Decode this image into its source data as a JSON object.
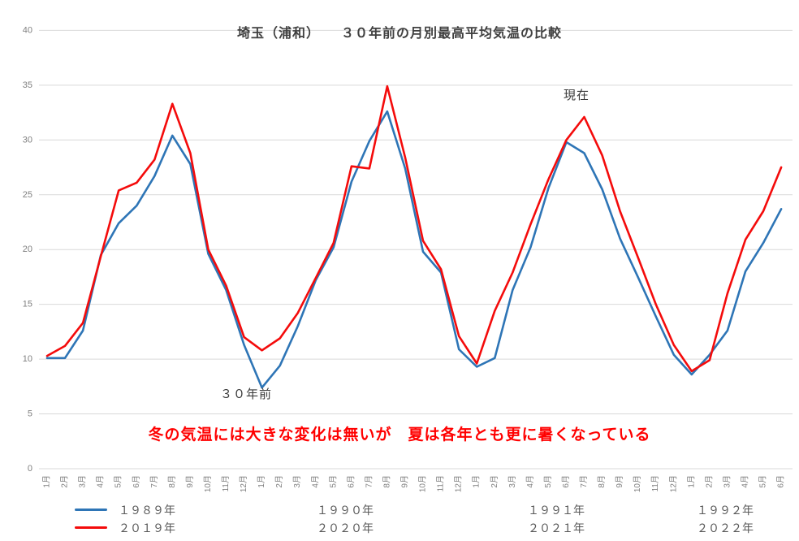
{
  "title": "埼玉（浦和）　　３０年前の月別最高平均気温の比較",
  "annotations": {
    "current": "現在",
    "thirty_years_ago": "３０年前"
  },
  "message": "冬の気温には大きな変化は無いが　夏は各年とも更に暑くなっている",
  "colors": {
    "past_line": "#2e75b6",
    "current_line": "#f40b0b",
    "grid": "#d9d9d9",
    "axis_text": "#7f7f7f",
    "title_text": "#404040",
    "annotation_text": "#3a3a3a",
    "message_text": "#ff0000"
  },
  "legend": {
    "rows": [
      {
        "color_key": "past_line",
        "items": [
          "１９８９年",
          "１９９０年",
          "１９９１年",
          "１９９２年"
        ]
      },
      {
        "color_key": "current_line",
        "items": [
          "２０１９年",
          "２０２０年",
          "２０２１年",
          "２０２２年"
        ]
      }
    ]
  },
  "chart_data": {
    "type": "line",
    "title": "埼玉（浦和）　３０年前の月別最高平均気温の比較",
    "xlabel": "",
    "ylabel": "",
    "ylim": [
      0,
      40
    ],
    "y_ticks": [
      0,
      5,
      10,
      15,
      20,
      25,
      30,
      35,
      40
    ],
    "grid": true,
    "legend_position": "bottom",
    "categories": [
      "1月",
      "2月",
      "3月",
      "4月",
      "5月",
      "6月",
      "7月",
      "8月",
      "9月",
      "10月",
      "11月",
      "12月",
      "1月",
      "2月",
      "3月",
      "4月",
      "5月",
      "6月",
      "7月",
      "8月",
      "9月",
      "10月",
      "11月",
      "12月",
      "1月",
      "2月",
      "3月",
      "4月",
      "5月",
      "6月",
      "7月",
      "8月",
      "9月",
      "10月",
      "11月",
      "12月",
      "1月",
      "2月",
      "3月",
      "4月",
      "5月",
      "6月"
    ],
    "series": [
      {
        "name": "３０年前（１９８９年〜１９９２年）",
        "color_key": "past_line",
        "values": [
          10.1,
          10.1,
          12.6,
          19.5,
          22.4,
          24.0,
          26.7,
          30.4,
          27.8,
          19.6,
          16.3,
          11.3,
          7.4,
          9.4,
          13.0,
          17.2,
          20.2,
          26.2,
          29.9,
          32.6,
          27.4,
          19.8,
          17.9,
          10.9,
          9.3,
          10.1,
          16.3,
          20.2,
          25.6,
          29.8,
          28.8,
          25.5,
          21.0,
          17.5,
          13.9,
          10.4,
          8.6,
          10.4,
          12.6,
          18.0,
          20.6,
          23.7
        ]
      },
      {
        "name": "現在（２０１９年〜２０２２年）",
        "color_key": "current_line",
        "values": [
          10.3,
          11.2,
          13.3,
          19.4,
          25.4,
          26.1,
          28.2,
          33.3,
          28.8,
          20.0,
          16.7,
          12.0,
          10.8,
          11.9,
          14.2,
          17.4,
          20.6,
          27.6,
          27.4,
          34.9,
          28.4,
          20.8,
          18.2,
          12.1,
          9.6,
          14.4,
          17.9,
          22.3,
          26.4,
          30.0,
          32.1,
          28.6,
          23.5,
          19.3,
          15.0,
          11.3,
          8.9,
          9.9,
          16.0,
          20.9,
          23.5,
          27.5
        ]
      }
    ]
  }
}
